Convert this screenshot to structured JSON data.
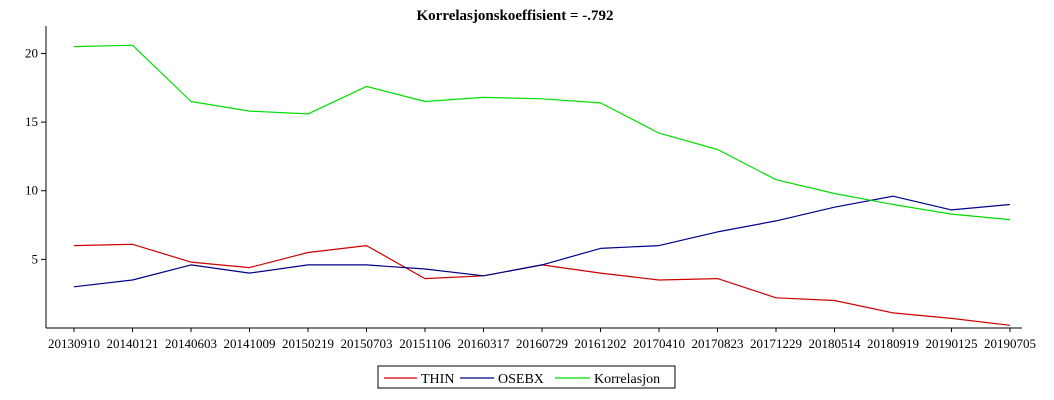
{
  "chart_data": {
    "type": "line",
    "title": "Korrelasjonskoeffisient =  -.792",
    "xlabel": "",
    "ylabel": "",
    "ylim": [
      0,
      22
    ],
    "yticks": [
      "5",
      "10",
      "15",
      "20"
    ],
    "yticks_values": [
      5,
      10,
      15,
      20
    ],
    "grid": false,
    "legend_position": "bottom-center",
    "x": [
      "20130910",
      "20140121",
      "20140603",
      "20141009",
      "20150219",
      "20150703",
      "20151106",
      "20160317",
      "20160729",
      "20161202",
      "20170410",
      "20170823",
      "20171229",
      "20180514",
      "20180919",
      "20190125",
      "20190705"
    ],
    "x_tick_labels": [
      "20130910",
      "20140121",
      "20140603",
      "20141009",
      "20150219",
      "20150703",
      "20151106",
      "20160317",
      "20160729",
      "20161202",
      "20170410",
      "20170823",
      "20171229",
      "20180514",
      "20180919",
      "20190125",
      "20190705"
    ],
    "series": [
      {
        "name": "THIN",
        "color": "#cc0000",
        "values": [
          6.0,
          6.1,
          4.8,
          4.4,
          5.5,
          6.0,
          3.6,
          3.8,
          4.6,
          4.0,
          3.5,
          3.6,
          2.2,
          2.0,
          1.1,
          0.7,
          0.2
        ]
      },
      {
        "name": "OSEBX",
        "color": "#00008b",
        "values": [
          3.0,
          3.5,
          4.6,
          4.0,
          4.6,
          4.6,
          4.3,
          3.8,
          4.6,
          5.8,
          6.0,
          7.0,
          7.8,
          8.8,
          9.6,
          8.6,
          9.0
        ]
      },
      {
        "name": "Korrelasjon",
        "color": "#00dd00",
        "values": [
          20.5,
          20.6,
          16.5,
          15.8,
          15.6,
          17.6,
          16.5,
          16.8,
          16.7,
          16.4,
          14.2,
          13.0,
          10.8,
          9.8,
          9.0,
          8.3,
          7.9
        ]
      }
    ]
  }
}
